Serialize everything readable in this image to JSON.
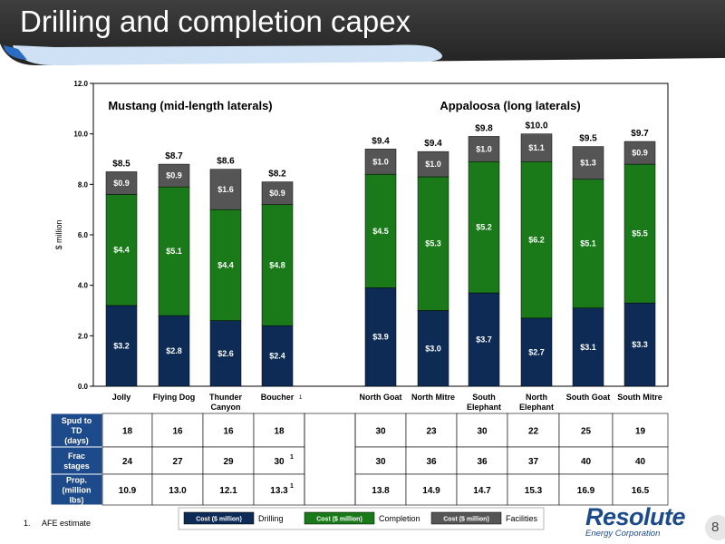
{
  "slide": {
    "title": "Drilling and completion capex",
    "page_number": "8",
    "footnote_number": "1.",
    "footnote_text": "AFE estimate",
    "logo_main": "Resolute",
    "logo_sub": "Energy Corporation"
  },
  "colors": {
    "drilling": "#0d2b55",
    "completion": "#1a7a1a",
    "facilities": "#555555",
    "accent": "#1d4a8a"
  },
  "chart_data": {
    "type": "bar",
    "stacked": true,
    "ylabel": "$ million",
    "ylim": [
      0,
      12
    ],
    "yticks": [
      "0.0",
      "2.0",
      "4.0",
      "6.0",
      "8.0",
      "10.0",
      "12.0"
    ],
    "groups": [
      {
        "label": "Mustang (mid-length laterals)",
        "first": 0,
        "last": 3
      },
      {
        "label": "Appaloosa (long laterals)",
        "first": 4,
        "last": 9
      }
    ],
    "categories": [
      {
        "name": "Jolly",
        "sup": ""
      },
      {
        "name": "Flying Dog",
        "sup": ""
      },
      {
        "name": "Thunder\nCanyon",
        "sup": ""
      },
      {
        "name": "Boucher",
        "sup": "1"
      },
      {
        "name": "North Goat",
        "sup": ""
      },
      {
        "name": "North Mitre",
        "sup": ""
      },
      {
        "name": "South\nElephant",
        "sup": ""
      },
      {
        "name": "North\nElephant",
        "sup": ""
      },
      {
        "name": "South Goat",
        "sup": ""
      },
      {
        "name": "South Mitre",
        "sup": ""
      }
    ],
    "series": [
      {
        "name": "Drilling",
        "values": [
          3.2,
          2.8,
          2.6,
          2.4,
          3.9,
          3.0,
          3.7,
          2.7,
          3.1,
          3.3
        ],
        "labels": [
          "$3.2",
          "$2.8",
          "$2.6",
          "$2.4",
          "$3.9",
          "$3.0",
          "$3.7",
          "$2.7",
          "$3.1",
          "$3.3"
        ]
      },
      {
        "name": "Completion",
        "values": [
          4.4,
          5.1,
          4.4,
          4.8,
          4.5,
          5.3,
          5.2,
          6.2,
          5.1,
          5.5
        ],
        "labels": [
          "$4.4",
          "$5.1",
          "$4.4",
          "$4.8",
          "$4.5",
          "$5.3",
          "$5.2",
          "$6.2",
          "$5.1",
          "$5.5"
        ]
      },
      {
        "name": "Facilities",
        "values": [
          0.9,
          0.9,
          1.6,
          0.9,
          1.0,
          1.0,
          1.0,
          1.1,
          1.3,
          0.9
        ],
        "labels": [
          "$0.9",
          "$0.9",
          "$1.6",
          "$0.9",
          "$1.0",
          "$1.0",
          "$1.0",
          "$1.1",
          "$1.3",
          "$0.9"
        ]
      }
    ],
    "totals": [
      "$8.5",
      "$8.7",
      "$8.6",
      "$8.2",
      "$9.4",
      "$9.4",
      "$9.8",
      "$10.0",
      "$9.5",
      "$9.7"
    ],
    "legend": [
      {
        "box": "Cost ($ million)",
        "label": "Drilling"
      },
      {
        "box": "Cost ($ million)",
        "label": "Completion"
      },
      {
        "box": "Cost ($ million)",
        "label": "Facilities"
      }
    ],
    "table": {
      "rows": [
        {
          "header": "Spud to\nTD\n(days)",
          "values": [
            "18",
            "16",
            "16",
            "18",
            "30",
            "23",
            "30",
            "22",
            "25",
            "19"
          ],
          "sups": [
            "",
            "",
            "",
            "",
            "",
            "",
            "",
            "",
            "",
            ""
          ]
        },
        {
          "header": "Frac\nstages",
          "values": [
            "24",
            "27",
            "29",
            "30",
            "30",
            "36",
            "36",
            "37",
            "40",
            "40"
          ],
          "sups": [
            "",
            "",
            "",
            "1",
            "",
            "",
            "",
            "",
            "",
            ""
          ]
        },
        {
          "header": "Prop.\n(million\nlbs)",
          "values": [
            "10.9",
            "13.0",
            "12.1",
            "13.3",
            "13.8",
            "14.9",
            "14.7",
            "15.3",
            "16.9",
            "16.5"
          ],
          "sups": [
            "",
            "",
            "",
            "1",
            "",
            "",
            "",
            "",
            "",
            ""
          ]
        }
      ]
    }
  }
}
